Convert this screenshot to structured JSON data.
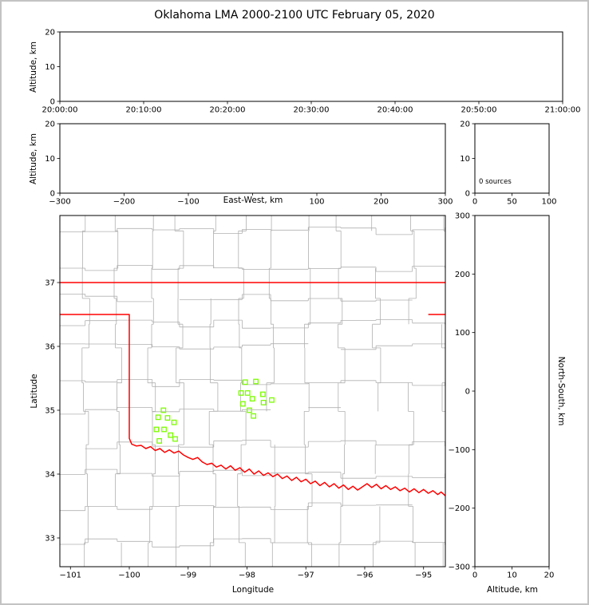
{
  "title": "Oklahoma LMA 2000-2100 UTC February 05, 2020",
  "colors": {
    "background": "#ffffff",
    "outer_border": "#c3c3c3",
    "axis_frame": "#000000",
    "county_line": "#b0b0b0",
    "state_border": "#ff0000",
    "station_marker": "#7cfc00",
    "text": "#000000"
  },
  "chart_data": [
    {
      "id": "time-height",
      "type": "scatter",
      "ylabel": "Altitude, km",
      "xtick_labels": [
        "20:00:00",
        "20:10:00",
        "20:20:00",
        "20:30:00",
        "20:40:00",
        "20:50:00",
        "21:00:00"
      ],
      "yticks": [
        0,
        10,
        20
      ],
      "ytick_labels": [
        "0",
        "10",
        "20"
      ],
      "ylim": [
        0,
        20
      ],
      "points": []
    },
    {
      "id": "eastwest-height",
      "type": "scatter",
      "xlabel": "East-West, km",
      "ylabel": "Altitude, km",
      "xticks": [
        -300,
        -200,
        -100,
        0,
        100,
        200,
        300
      ],
      "xtick_labels": [
        "−300",
        "−200",
        "−100",
        "0",
        "100",
        "200",
        "300"
      ],
      "xlim": [
        -300,
        300
      ],
      "yticks": [
        0,
        10,
        20
      ],
      "ytick_labels": [
        "0",
        "10",
        "20"
      ],
      "ylim": [
        0,
        20
      ],
      "points": []
    },
    {
      "id": "source-histogram",
      "type": "scatter",
      "annotation": "0 sources",
      "xticks": [
        0,
        50,
        100
      ],
      "xtick_labels": [
        "0",
        "50",
        "100"
      ],
      "xlim": [
        0,
        100
      ],
      "yticks": [
        0,
        10,
        20
      ],
      "ytick_labels": [
        "0",
        "10",
        "20"
      ],
      "ylim": [
        0,
        20
      ],
      "points": []
    },
    {
      "id": "map",
      "type": "scatter",
      "xlabel": "Longitude",
      "ylabel": "Latitude",
      "xticks": [
        -101,
        -100,
        -99,
        -98,
        -97,
        -96,
        -95
      ],
      "xtick_labels": [
        "−101",
        "−100",
        "−99",
        "−98",
        "−97",
        "−96",
        "−95"
      ],
      "xlim": [
        -101.18,
        -94.63
      ],
      "yticks": [
        33,
        34,
        35,
        36,
        37
      ],
      "ytick_labels": [
        "33",
        "34",
        "35",
        "36",
        "37"
      ],
      "ylim": [
        32.55,
        38.05
      ],
      "stations": [
        [
          -98.03,
          35.44
        ],
        [
          -97.85,
          35.45
        ],
        [
          -98.1,
          35.27
        ],
        [
          -97.99,
          35.27
        ],
        [
          -97.73,
          35.25
        ],
        [
          -97.91,
          35.18
        ],
        [
          -98.07,
          35.1
        ],
        [
          -97.72,
          35.12
        ],
        [
          -97.58,
          35.16
        ],
        [
          -97.96,
          35.0
        ],
        [
          -97.89,
          34.91
        ],
        [
          -99.42,
          35.0
        ],
        [
          -99.51,
          34.89
        ],
        [
          -99.35,
          34.88
        ],
        [
          -99.24,
          34.81
        ],
        [
          -99.54,
          34.7
        ],
        [
          -99.41,
          34.7
        ],
        [
          -99.3,
          34.61
        ],
        [
          -99.49,
          34.52
        ],
        [
          -99.22,
          34.55
        ]
      ],
      "state_border": {
        "kansas_oklahoma_lat": 37.0,
        "panhandle_south_lat": 36.5,
        "panhandle_east_lon": -100.0,
        "meridian_south_lat": 34.56,
        "missouri_segment": {
          "lat": 36.5,
          "lon_start": -94.92
        },
        "red_river_boundary": [
          [
            -100.0,
            34.56
          ],
          [
            -99.96,
            34.47
          ],
          [
            -99.88,
            34.44
          ],
          [
            -99.8,
            34.45
          ],
          [
            -99.72,
            34.4
          ],
          [
            -99.64,
            34.43
          ],
          [
            -99.56,
            34.37
          ],
          [
            -99.48,
            34.4
          ],
          [
            -99.4,
            34.34
          ],
          [
            -99.32,
            34.38
          ],
          [
            -99.24,
            34.33
          ],
          [
            -99.16,
            34.36
          ],
          [
            -99.08,
            34.3
          ],
          [
            -99.0,
            34.26
          ],
          [
            -98.92,
            34.23
          ],
          [
            -98.84,
            34.26
          ],
          [
            -98.76,
            34.19
          ],
          [
            -98.68,
            34.15
          ],
          [
            -98.6,
            34.17
          ],
          [
            -98.52,
            34.11
          ],
          [
            -98.44,
            34.14
          ],
          [
            -98.36,
            34.08
          ],
          [
            -98.28,
            34.13
          ],
          [
            -98.2,
            34.06
          ],
          [
            -98.12,
            34.1
          ],
          [
            -98.04,
            34.03
          ],
          [
            -97.96,
            34.08
          ],
          [
            -97.88,
            34.0
          ],
          [
            -97.8,
            34.05
          ],
          [
            -97.72,
            33.98
          ],
          [
            -97.64,
            34.02
          ],
          [
            -97.56,
            33.96
          ],
          [
            -97.48,
            34.0
          ],
          [
            -97.4,
            33.93
          ],
          [
            -97.32,
            33.97
          ],
          [
            -97.24,
            33.9
          ],
          [
            -97.16,
            33.95
          ],
          [
            -97.08,
            33.88
          ],
          [
            -97.0,
            33.92
          ],
          [
            -96.92,
            33.85
          ],
          [
            -96.84,
            33.89
          ],
          [
            -96.76,
            33.82
          ],
          [
            -96.68,
            33.87
          ],
          [
            -96.6,
            33.8
          ],
          [
            -96.52,
            33.85
          ],
          [
            -96.44,
            33.78
          ],
          [
            -96.36,
            33.83
          ],
          [
            -96.28,
            33.76
          ],
          [
            -96.2,
            33.81
          ],
          [
            -96.12,
            33.75
          ],
          [
            -96.04,
            33.8
          ],
          [
            -95.96,
            33.85
          ],
          [
            -95.88,
            33.79
          ],
          [
            -95.8,
            33.84
          ],
          [
            -95.72,
            33.77
          ],
          [
            -95.64,
            33.82
          ],
          [
            -95.56,
            33.76
          ],
          [
            -95.48,
            33.8
          ],
          [
            -95.4,
            33.74
          ],
          [
            -95.32,
            33.78
          ],
          [
            -95.24,
            33.72
          ],
          [
            -95.16,
            33.77
          ],
          [
            -95.08,
            33.71
          ],
          [
            -95.0,
            33.76
          ],
          [
            -94.92,
            33.7
          ],
          [
            -94.84,
            33.74
          ],
          [
            -94.76,
            33.68
          ],
          [
            -94.7,
            33.72
          ],
          [
            -94.63,
            33.66
          ]
        ]
      }
    },
    {
      "id": "height-northsouth",
      "type": "scatter",
      "xlabel": "Altitude, km",
      "ylabel": "North-South, km",
      "xticks": [
        0,
        10,
        20
      ],
      "xtick_labels": [
        "0",
        "10",
        "20"
      ],
      "xlim": [
        0,
        20
      ],
      "yticks": [
        300,
        200,
        100,
        0,
        -100,
        -200,
        -300
      ],
      "ytick_labels": [
        "300",
        "200",
        "100",
        "0",
        "−100",
        "−200",
        "−300"
      ],
      "ylim": [
        -300,
        300
      ],
      "points": []
    }
  ]
}
